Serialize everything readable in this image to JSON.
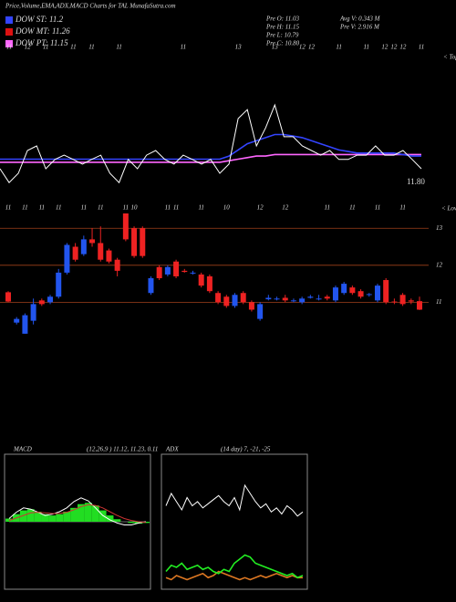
{
  "header": {
    "title": "Price,Volume,EMA,ADX,MACD Charts for TAL  MunafaSutra.com",
    "legend": [
      {
        "label": "DOW ST: 11.2",
        "color": "#3344ff"
      },
      {
        "label": "DOW MT: 11.26",
        "color": "#dd1111"
      },
      {
        "label": "DOW PT: 11.15",
        "color": "#ff66ff"
      }
    ],
    "stats": [
      "Pre   O: 11.03",
      "Pre   H: 11.15",
      "Pre   L: 10.79",
      "Pre   C: 10.80"
    ],
    "stats2": [
      "Avg V: 0.343 M",
      "Pre   V: 2.916  M"
    ],
    "top_note": "< Topu",
    "low_note": "< Lowes"
  },
  "chart_data": [
    {
      "type": "line",
      "annotation": "11.80",
      "ylim": [
        10,
        14
      ],
      "categories": [
        null,
        "11",
        null,
        "12",
        null,
        "11",
        null,
        null,
        "11",
        null,
        "11",
        null,
        null,
        "11",
        null,
        null,
        null,
        null,
        null,
        null,
        "11",
        null,
        null,
        null,
        null,
        null,
        "13",
        null,
        null,
        null,
        "13",
        null,
        null,
        "12",
        "12",
        null,
        null,
        "11",
        null,
        null,
        "11",
        null,
        "12",
        "12",
        "12",
        null,
        "11"
      ],
      "series": [
        {
          "color": "#ffffff",
          "values": [
            10.89,
            10.44,
            10.74,
            11.48,
            11.63,
            10.89,
            11.19,
            11.33,
            11.19,
            11.04,
            11.19,
            11.33,
            10.74,
            10.44,
            11.19,
            10.89,
            11.33,
            11.48,
            11.19,
            11.04,
            11.33,
            11.19,
            11.04,
            11.19,
            10.74,
            11.04,
            12.52,
            12.81,
            11.63,
            12.22,
            12.96,
            11.93,
            11.93,
            11.63,
            11.48,
            11.33,
            11.48,
            11.19,
            11.19,
            11.33,
            11.33,
            11.63,
            11.33,
            11.33,
            11.48,
            11.19,
            10.89
          ]
        },
        {
          "color": "#3344ff",
          "values": [
            11.2,
            11.2,
            11.2,
            11.2,
            11.2,
            11.2,
            11.2,
            11.2,
            11.2,
            11.2,
            11.2,
            11.2,
            11.2,
            11.2,
            11.2,
            11.2,
            11.2,
            11.2,
            11.2,
            11.2,
            11.2,
            11.2,
            11.2,
            11.2,
            11.2,
            11.3,
            11.5,
            11.7,
            11.8,
            11.9,
            12.0,
            12.0,
            11.95,
            11.9,
            11.8,
            11.7,
            11.6,
            11.5,
            11.45,
            11.4,
            11.4,
            11.4,
            11.4,
            11.4,
            11.35,
            11.3,
            11.3
          ]
        },
        {
          "color": "#ff66ff",
          "values": [
            11.1,
            11.1,
            11.1,
            11.1,
            11.1,
            11.1,
            11.1,
            11.1,
            11.1,
            11.1,
            11.1,
            11.1,
            11.1,
            11.1,
            11.1,
            11.1,
            11.1,
            11.1,
            11.1,
            11.1,
            11.1,
            11.1,
            11.1,
            11.1,
            11.1,
            11.15,
            11.2,
            11.25,
            11.3,
            11.3,
            11.35,
            11.35,
            11.35,
            11.35,
            11.35,
            11.35,
            11.35,
            11.35,
            11.35,
            11.35,
            11.35,
            11.35,
            11.35,
            11.35,
            11.35,
            11.35,
            11.35
          ]
        }
      ]
    },
    {
      "type": "candlestick",
      "ylim": [
        9.9,
        13.4
      ],
      "yticks": [
        13,
        12,
        11
      ],
      "up_color": "#2255ee",
      "down_color": "#ee2222",
      "categories": [
        "11",
        null,
        "11",
        null,
        "11",
        null,
        "11",
        null,
        null,
        "11",
        null,
        "11",
        null,
        null,
        "11",
        "10",
        null,
        null,
        null,
        "11",
        "11",
        null,
        null,
        "11",
        null,
        null,
        "10",
        null,
        null,
        null,
        "12",
        null,
        null,
        "12",
        null,
        null,
        null,
        null,
        "11",
        null,
        null,
        "11",
        null,
        null,
        "11",
        null,
        null,
        "11",
        null,
        null
      ],
      "open": [
        11.27,
        10.45,
        10.15,
        10.5,
        11.05,
        11.0,
        11.15,
        11.8,
        12.5,
        12.3,
        12.7,
        12.6,
        12.4,
        12.15,
        13.4,
        13.0,
        13.0,
        11.25,
        11.95,
        11.75,
        12.1,
        11.85,
        11.8,
        11.75,
        11.7,
        11.25,
        11.15,
        10.9,
        11.25,
        11.0,
        10.55,
        11.08,
        11.1,
        11.12,
        11.05,
        11.0,
        11.12,
        11.1,
        11.15,
        11.05,
        11.25,
        11.4,
        11.3,
        11.2,
        11.05,
        11.6,
        11.02,
        11.2,
        11.05,
        11.03
      ],
      "high": [
        11.3,
        10.6,
        10.7,
        11.1,
        11.1,
        11.2,
        11.9,
        12.6,
        12.6,
        12.8,
        13.0,
        13.05,
        12.45,
        12.2,
        13.4,
        13.05,
        13.05,
        11.7,
        12.0,
        12.0,
        12.15,
        11.9,
        11.85,
        11.8,
        11.75,
        11.3,
        11.2,
        11.25,
        11.3,
        11.05,
        11.0,
        11.2,
        11.15,
        11.2,
        11.1,
        11.15,
        11.2,
        11.2,
        11.2,
        11.45,
        11.55,
        11.45,
        11.35,
        11.25,
        11.5,
        11.65,
        11.1,
        11.25,
        11.1,
        11.15
      ],
      "low": [
        11.0,
        10.4,
        10.15,
        10.4,
        10.9,
        10.95,
        11.1,
        11.75,
        12.1,
        12.25,
        12.5,
        12.1,
        12.05,
        11.7,
        12.65,
        12.2,
        12.2,
        11.2,
        11.6,
        11.7,
        11.65,
        11.8,
        11.75,
        11.4,
        11.25,
        10.95,
        10.85,
        10.85,
        10.95,
        10.75,
        10.5,
        11.05,
        11.05,
        11.0,
        11.0,
        10.95,
        11.1,
        11.05,
        11.05,
        11.0,
        11.2,
        11.2,
        11.1,
        11.15,
        11.0,
        10.95,
        10.95,
        10.9,
        10.95,
        10.79
      ],
      "close": [
        11.02,
        10.55,
        10.65,
        10.95,
        10.95,
        11.15,
        11.8,
        12.55,
        12.15,
        12.7,
        12.6,
        12.15,
        12.1,
        11.85,
        12.7,
        12.25,
        12.25,
        11.65,
        11.65,
        11.95,
        11.7,
        11.82,
        11.8,
        11.45,
        11.3,
        11.0,
        10.9,
        11.2,
        11.0,
        10.8,
        10.95,
        11.12,
        11.1,
        11.05,
        11.05,
        11.1,
        11.15,
        11.1,
        11.1,
        11.4,
        11.5,
        11.25,
        11.15,
        11.22,
        11.45,
        11.0,
        11.0,
        10.95,
        11.02,
        10.8
      ]
    },
    {
      "type": "macd",
      "title": "MACD",
      "label": "(12,26,9 ) 11.12, 11.23, 0.11",
      "ylim": [
        -1,
        1
      ],
      "histogram": [
        0.05,
        0.12,
        0.18,
        0.2,
        0.16,
        0.12,
        0.1,
        0.12,
        0.16,
        0.22,
        0.28,
        0.3,
        0.26,
        0.18,
        0.1,
        0.04,
        0.0,
        -0.02,
        -0.03,
        -0.02
      ],
      "series": [
        {
          "color": "#ffffff",
          "values": [
            0.05,
            0.15,
            0.22,
            0.2,
            0.15,
            0.1,
            0.12,
            0.16,
            0.22,
            0.32,
            0.38,
            0.33,
            0.22,
            0.1,
            0.03,
            -0.02,
            -0.05,
            -0.05,
            -0.02,
            0.0
          ]
        },
        {
          "color": "#cc3333",
          "values": [
            0.02,
            0.06,
            0.1,
            0.14,
            0.15,
            0.14,
            0.13,
            0.13,
            0.15,
            0.19,
            0.24,
            0.27,
            0.26,
            0.22,
            0.16,
            0.1,
            0.05,
            0.02,
            0.0,
            -0.01
          ]
        }
      ]
    },
    {
      "type": "line",
      "title": "ADX",
      "label": "(14 day) 7, -21, -25",
      "ylim": [
        0,
        60
      ],
      "series": [
        {
          "color": "#ffffff",
          "values": [
            38,
            44,
            40,
            36,
            42,
            38,
            40,
            37,
            39,
            41,
            43,
            40,
            38,
            42,
            36,
            48,
            44,
            40,
            37,
            39,
            35,
            37,
            34,
            38,
            36,
            33,
            35
          ]
        },
        {
          "color": "#22ee22",
          "values": [
            6,
            9,
            8,
            10,
            7,
            8,
            9,
            7,
            8,
            6,
            5,
            7,
            6,
            10,
            12,
            14,
            13,
            10,
            9,
            8,
            7,
            6,
            5,
            4,
            5,
            3,
            4
          ]
        },
        {
          "color": "#dd7722",
          "values": [
            3,
            2,
            4,
            3,
            2,
            3,
            4,
            5,
            3,
            4,
            6,
            5,
            4,
            3,
            2,
            3,
            2,
            3,
            4,
            3,
            4,
            5,
            4,
            3,
            4,
            3,
            3
          ]
        }
      ]
    }
  ]
}
